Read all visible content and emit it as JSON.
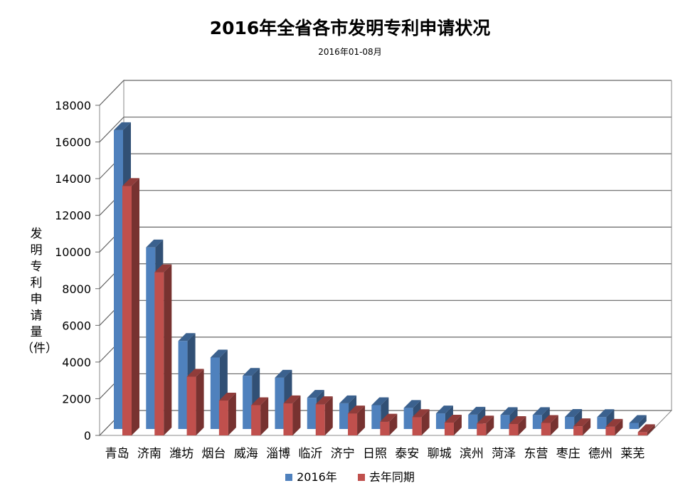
{
  "chart_data": {
    "type": "bar",
    "title": "2016年全省各市发明专利申请状况",
    "subtitle": "2016年01-08月",
    "ylabel_chars": [
      "发",
      "明",
      "专",
      "利",
      "申",
      "请",
      "量",
      "（件）"
    ],
    "ylim": [
      0,
      18000
    ],
    "yticks": [
      0,
      2000,
      4000,
      6000,
      8000,
      10000,
      12000,
      14000,
      16000,
      18000
    ],
    "grid": true,
    "legend_position": "bottom",
    "categories": [
      "青岛",
      "济南",
      "潍坊",
      "烟台",
      "威海",
      "淄博",
      "临沂",
      "济宁",
      "日照",
      "泰安",
      "聊城",
      "滨州",
      "菏泽",
      "东营",
      "枣庄",
      "德州",
      "莱芜"
    ],
    "series": [
      {
        "name": "2016年",
        "color": "#4f81bd",
        "values": [
          16300,
          9900,
          4800,
          3900,
          2900,
          2800,
          1700,
          1400,
          1300,
          1150,
          850,
          780,
          760,
          760,
          660,
          650,
          330
        ]
      },
      {
        "name": "去年同期",
        "color": "#c0504d",
        "values": [
          13600,
          8900,
          3200,
          1900,
          1650,
          1750,
          1700,
          1200,
          750,
          1000,
          700,
          650,
          620,
          680,
          500,
          470,
          180
        ]
      }
    ]
  }
}
